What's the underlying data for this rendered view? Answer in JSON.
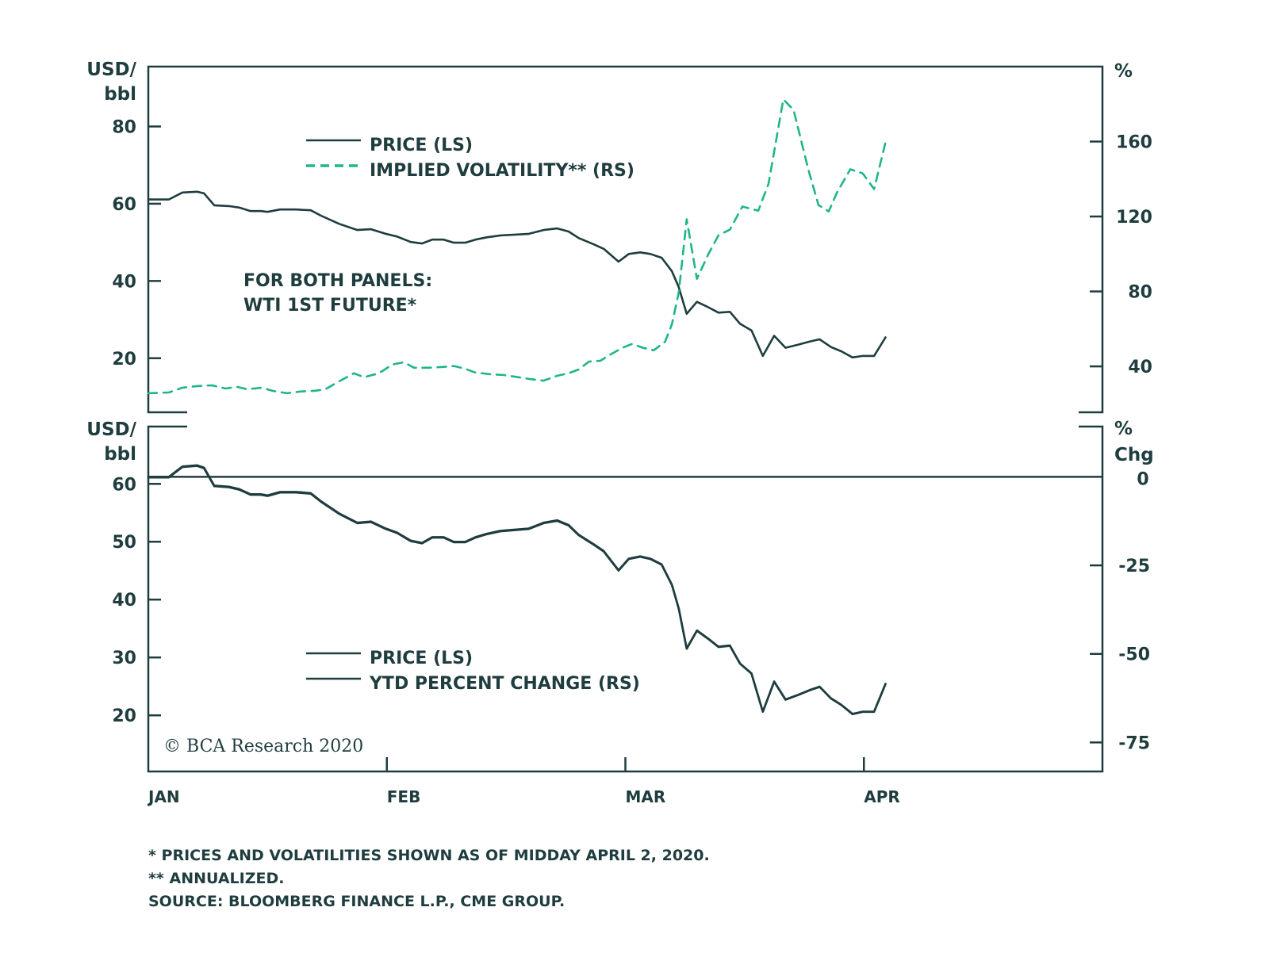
{
  "colors": {
    "ink": "#1f3d3f",
    "price": "#1f3d3f",
    "volatility": "#1fb58a",
    "ytd": "#1f3d3f",
    "background": "#ffffff"
  },
  "chart_data": [
    {
      "type": "line",
      "panel": "top",
      "title": "",
      "annotation": [
        "FOR BOTH PANELS:",
        "WTI 1ST FUTURE*"
      ],
      "left_axis": {
        "unit": [
          "USD/",
          "bbl"
        ],
        "ticks": [
          20,
          40,
          60,
          80
        ],
        "tick_labels": [
          "20",
          "40",
          "60",
          "80"
        ],
        "ylim": [
          6,
          95.5
        ]
      },
      "right_axis": {
        "unit": [
          "%"
        ],
        "ticks": [
          40,
          80,
          120,
          160
        ],
        "tick_labels": [
          "40",
          "80",
          "120",
          "160"
        ],
        "ylim": [
          15.5,
          200
        ]
      },
      "x_axis": {
        "tick_labels": [
          "JAN",
          "FEB",
          "MAR",
          "APR"
        ],
        "xlim_trading_days": [
          0,
          84
        ]
      },
      "legend": {
        "placement": "top-center",
        "entries": [
          {
            "label": "PRICE (LS)",
            "style": "solid",
            "series": "price"
          },
          {
            "label": "IMPLIED VOLATILITY** (RS)",
            "style": "dashed",
            "series": "volatility"
          }
        ]
      },
      "grid": false,
      "series": [
        {
          "name": "PRICE (LS)",
          "axis": "left",
          "key": "price"
        },
        {
          "name": "IMPLIED VOLATILITY** (RS)",
          "axis": "right",
          "key": "volatility"
        }
      ]
    },
    {
      "type": "line",
      "panel": "bottom",
      "title": "",
      "left_axis": {
        "unit": [
          "USD/",
          "bbl"
        ],
        "ticks": [
          20,
          30,
          40,
          50,
          60
        ],
        "tick_labels": [
          "20",
          "30",
          "40",
          "50",
          "60"
        ],
        "ylim": [
          10.3,
          69.9
        ]
      },
      "right_axis": {
        "unit": [
          "%",
          "Chg"
        ],
        "ticks": [
          0,
          -25,
          -50,
          -75
        ],
        "tick_labels": [
          "0",
          "-25",
          "-50",
          "-75"
        ],
        "ylim": [
          -83.2,
          14.2
        ]
      },
      "x_axis": {
        "tick_labels": [
          "JAN",
          "FEB",
          "MAR",
          "APR"
        ],
        "xlim_trading_days": [
          0,
          84
        ]
      },
      "reference_line": {
        "axis": "right",
        "value": 0
      },
      "legend": {
        "placement": "bottom-center",
        "entries": [
          {
            "label": "PRICE (LS)",
            "style": "solid",
            "series": "price"
          },
          {
            "label": "YTD PERCENT CHANGE (RS)",
            "style": "solid",
            "series": "ytd"
          }
        ]
      },
      "grid": false,
      "series": [
        {
          "name": "PRICE (LS)",
          "axis": "left",
          "key": "price"
        },
        {
          "name": "YTD PERCENT CHANGE (RS)",
          "axis": "right",
          "key": "ytd",
          "note": "derived from price relative to first value"
        }
      ]
    }
  ],
  "series_data": {
    "months": [
      {
        "label": "JAN",
        "day": 0
      },
      {
        "label": "FEB",
        "day": 21
      },
      {
        "label": "MAR",
        "day": 42
      },
      {
        "label": "APR",
        "day": 63
      }
    ],
    "last_day": 64.7,
    "price": [
      [
        0.0,
        61.1
      ],
      [
        1.8,
        61.1
      ],
      [
        3.0,
        62.9
      ],
      [
        4.3,
        63.1
      ],
      [
        4.9,
        62.7
      ],
      [
        5.8,
        59.6
      ],
      [
        7.1,
        59.4
      ],
      [
        8.0,
        59.0
      ],
      [
        9.0,
        58.1
      ],
      [
        9.9,
        58.1
      ],
      [
        10.5,
        57.9
      ],
      [
        11.6,
        58.5
      ],
      [
        13.0,
        58.5
      ],
      [
        14.3,
        58.3
      ],
      [
        15.2,
        56.9
      ],
      [
        16.8,
        54.8
      ],
      [
        18.4,
        53.2
      ],
      [
        19.6,
        53.4
      ],
      [
        20.9,
        52.2
      ],
      [
        21.9,
        51.5
      ],
      [
        23.1,
        50.1
      ],
      [
        24.1,
        49.7
      ],
      [
        25.0,
        50.7
      ],
      [
        26.0,
        50.7
      ],
      [
        26.9,
        49.9
      ],
      [
        27.9,
        49.9
      ],
      [
        28.8,
        50.7
      ],
      [
        29.8,
        51.3
      ],
      [
        31.0,
        51.8
      ],
      [
        32.3,
        52.0
      ],
      [
        33.5,
        52.2
      ],
      [
        34.8,
        53.2
      ],
      [
        36.0,
        53.6
      ],
      [
        37.0,
        52.8
      ],
      [
        37.9,
        51.1
      ],
      [
        39.2,
        49.5
      ],
      [
        40.1,
        48.3
      ],
      [
        41.4,
        45.0
      ],
      [
        42.3,
        47.0
      ],
      [
        43.3,
        47.4
      ],
      [
        44.2,
        47.0
      ],
      [
        45.2,
        46.0
      ],
      [
        46.1,
        42.5
      ],
      [
        46.7,
        38.4
      ],
      [
        47.4,
        31.5
      ],
      [
        48.3,
        34.6
      ],
      [
        49.3,
        33.2
      ],
      [
        50.2,
        31.8
      ],
      [
        51.2,
        32.0
      ],
      [
        52.1,
        28.9
      ],
      [
        53.1,
        27.2
      ],
      [
        54.1,
        20.6
      ],
      [
        55.1,
        25.8
      ],
      [
        56.1,
        22.7
      ],
      [
        57.2,
        23.5
      ],
      [
        58.2,
        24.3
      ],
      [
        59.1,
        24.9
      ],
      [
        60.1,
        22.9
      ],
      [
        61.0,
        21.8
      ],
      [
        62.0,
        20.2
      ],
      [
        62.9,
        20.6
      ],
      [
        63.9,
        20.6
      ],
      [
        64.9,
        25.4
      ]
    ],
    "volatility": [
      [
        0.0,
        25.7
      ],
      [
        1.8,
        26.1
      ],
      [
        3.0,
        28.6
      ],
      [
        4.3,
        29.5
      ],
      [
        5.6,
        29.9
      ],
      [
        6.8,
        28.2
      ],
      [
        7.8,
        29.1
      ],
      [
        8.7,
        27.8
      ],
      [
        10.0,
        28.6
      ],
      [
        10.9,
        27.0
      ],
      [
        12.2,
        25.7
      ],
      [
        13.4,
        26.6
      ],
      [
        14.7,
        27.0
      ],
      [
        15.6,
        27.8
      ],
      [
        16.8,
        32.0
      ],
      [
        18.1,
        36.3
      ],
      [
        19.0,
        34.2
      ],
      [
        20.3,
        36.3
      ],
      [
        21.5,
        41.0
      ],
      [
        22.5,
        42.2
      ],
      [
        23.4,
        39.3
      ],
      [
        24.7,
        39.3
      ],
      [
        25.9,
        39.7
      ],
      [
        26.9,
        40.2
      ],
      [
        27.8,
        38.9
      ],
      [
        28.8,
        36.7
      ],
      [
        30.0,
        35.9
      ],
      [
        31.3,
        35.4
      ],
      [
        32.6,
        34.2
      ],
      [
        33.5,
        33.3
      ],
      [
        34.8,
        32.4
      ],
      [
        36.0,
        35.0
      ],
      [
        37.0,
        36.3
      ],
      [
        37.9,
        38.4
      ],
      [
        38.8,
        42.6
      ],
      [
        39.8,
        43.0
      ],
      [
        40.7,
        46.4
      ],
      [
        41.7,
        49.8
      ],
      [
        42.6,
        52.0
      ],
      [
        43.6,
        49.8
      ],
      [
        44.5,
        48.6
      ],
      [
        45.5,
        53.2
      ],
      [
        46.1,
        62.5
      ],
      [
        46.7,
        79.5
      ],
      [
        47.4,
        118.5
      ],
      [
        48.3,
        86.7
      ],
      [
        49.3,
        99.8
      ],
      [
        50.2,
        110.0
      ],
      [
        51.2,
        113.0
      ],
      [
        52.3,
        125.3
      ],
      [
        53.7,
        123.1
      ],
      [
        54.6,
        137.5
      ],
      [
        55.9,
        182.5
      ],
      [
        56.8,
        177.0
      ],
      [
        58.1,
        145.2
      ],
      [
        59.0,
        126.1
      ],
      [
        59.9,
        122.7
      ],
      [
        60.6,
        132.5
      ],
      [
        61.8,
        145.2
      ],
      [
        62.9,
        143.0
      ],
      [
        63.9,
        134.6
      ],
      [
        64.9,
        159.6
      ]
    ]
  },
  "legend_top": {
    "price_label": "PRICE (LS)",
    "volatility_label": "IMPLIED VOLATILITY** (RS)"
  },
  "legend_bottom": {
    "price_label": "PRICE (LS)",
    "ytd_label": "YTD PERCENT CHANGE (RS)"
  },
  "annotation": {
    "line1": "FOR BOTH PANELS:",
    "line2": "WTI 1ST FUTURE*"
  },
  "axes": {
    "top_left_unit_1": "USD/",
    "top_left_unit_2": "bbl",
    "top_right_unit": "%",
    "bottom_left_unit_1": "USD/",
    "bottom_left_unit_2": "bbl",
    "bottom_right_unit_1": "%",
    "bottom_right_unit_2": "Chg"
  },
  "copyright": "© BCA Research 2020",
  "footnotes": [
    "*  PRICES AND VOLATILITIES SHOWN AS OF MIDDAY APRIL 2, 2020.",
    "** ANNUALIZED.",
    "SOURCE: BLOOMBERG FINANCE L.P., CME GROUP."
  ]
}
